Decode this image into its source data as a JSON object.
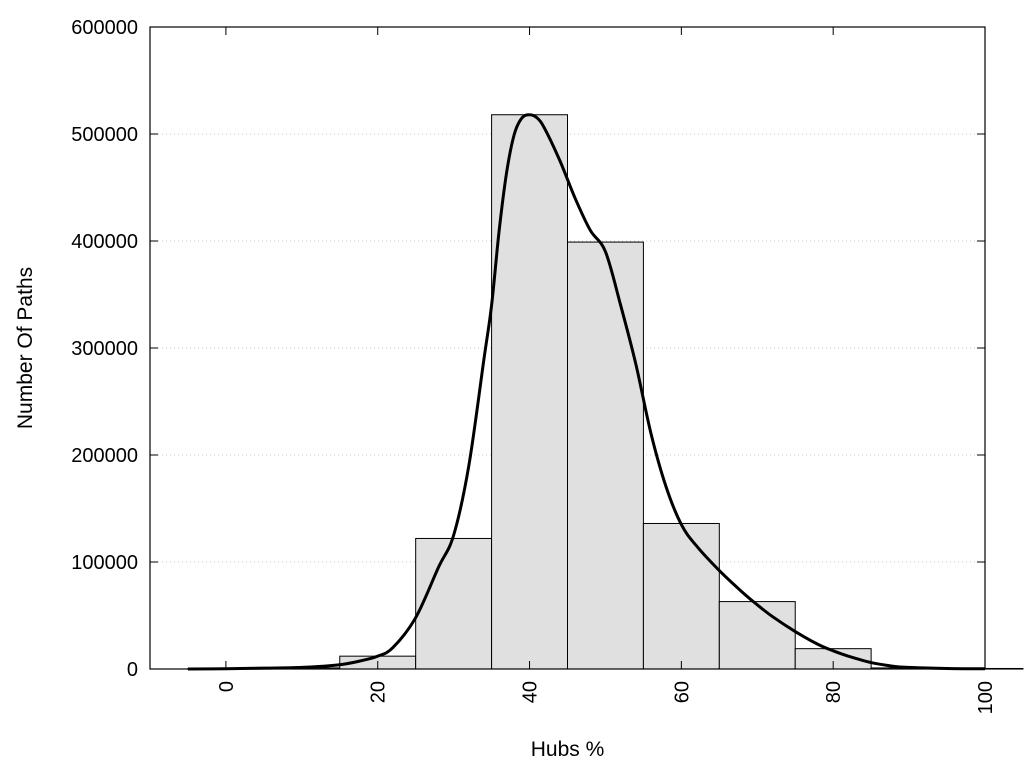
{
  "chart_data": {
    "type": "bar",
    "title": "",
    "xlabel": "Hubs %",
    "ylabel": "Number Of Paths",
    "xlim": [
      -10,
      100
    ],
    "ylim": [
      0,
      600000
    ],
    "x_ticks": [
      0,
      20,
      40,
      60,
      80,
      100
    ],
    "y_ticks": [
      0,
      100000,
      200000,
      300000,
      400000,
      500000,
      600000
    ],
    "grid": "horizontal dotted",
    "bar_color": "#e0e0e0",
    "bar_edge_color": "#000000",
    "line_color": "#000000",
    "bins": [
      {
        "x0": -5,
        "x1": 5,
        "value": 500
      },
      {
        "x0": 5,
        "x1": 15,
        "value": 1000
      },
      {
        "x0": 15,
        "x1": 25,
        "value": 12000
      },
      {
        "x0": 25,
        "x1": 35,
        "value": 122000
      },
      {
        "x0": 35,
        "x1": 45,
        "value": 518000
      },
      {
        "x0": 45,
        "x1": 55,
        "value": 399000
      },
      {
        "x0": 55,
        "x1": 65,
        "value": 136000
      },
      {
        "x0": 65,
        "x1": 75,
        "value": 63000
      },
      {
        "x0": 75,
        "x1": 85,
        "value": 19000
      },
      {
        "x0": 85,
        "x1": 95,
        "value": 1000
      },
      {
        "x0": 95,
        "x1": 105,
        "value": 500
      }
    ],
    "curve": {
      "x": [
        -5,
        0,
        5,
        10,
        15,
        18,
        20,
        22,
        25,
        28,
        30,
        32,
        34,
        35,
        36,
        37,
        38,
        39,
        40,
        41,
        42,
        44,
        46,
        48,
        50,
        52,
        54,
        56,
        58,
        60,
        62,
        65,
        68,
        70,
        72,
        75,
        78,
        80,
        82,
        85,
        88,
        90,
        95,
        100
      ],
      "y": [
        0,
        200,
        800,
        1500,
        4000,
        8000,
        12000,
        20000,
        48000,
        95000,
        125000,
        190000,
        290000,
        340000,
        410000,
        465000,
        500000,
        515000,
        518000,
        515000,
        505000,
        475000,
        440000,
        410000,
        390000,
        340000,
        285000,
        220000,
        170000,
        135000,
        115000,
        92000,
        72000,
        60000,
        49000,
        35000,
        23000,
        17000,
        12000,
        6000,
        2500,
        1500,
        500,
        200
      ]
    }
  }
}
